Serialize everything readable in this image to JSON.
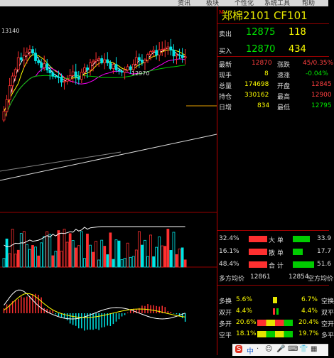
{
  "menu": {
    "items": [
      "资讯",
      "板块",
      "个性化",
      "系统工具",
      "帮助"
    ]
  },
  "chart": {
    "high_label": "13140",
    "mid_label": "12970",
    "colors": {
      "up": "#ff3030",
      "down": "#00e5e5",
      "ma1": "#ffffff",
      "ma2": "#ffff00",
      "ma3": "#ff00ff",
      "ma4": "#00cc00"
    }
  },
  "quote": {
    "badge": "M",
    "title": "郑棉2101  CF101",
    "sell_label": "卖出",
    "sell_price": "12875",
    "sell_vol": "118",
    "buy_label": "买入",
    "buy_price": "12870",
    "buy_vol": "434",
    "rows": [
      {
        "l1": "最新",
        "v1": "12870",
        "l2": "涨跌",
        "v2": "45/0.35%"
      },
      {
        "l1": "现手",
        "v1": "8",
        "l2": "速涨",
        "v2": "-0.04%"
      },
      {
        "l1": "总量",
        "v1": "174698",
        "l2": "开盘",
        "v2": "12845"
      },
      {
        "l1": "持仓",
        "v1": "330162",
        "l2": "最高",
        "v2": "12900"
      },
      {
        "l1": "日增",
        "v1": "834",
        "l2": "最低",
        "v2": "12795"
      }
    ]
  },
  "flow": {
    "big_buy_pct": "32.4%",
    "big_label": "大  单",
    "big_sell_pct": "33.9",
    "small_buy_pct": "16.1%",
    "small_label": "散  单",
    "small_sell_pct": "17.7",
    "total_buy_pct": "48.4%",
    "total_label": "合  计",
    "total_sell_pct": "51.6",
    "long_avg_label": "多方均价",
    "long_avg": "12861",
    "short_avg": "12854",
    "short_avg_label": "空方均价"
  },
  "positions": {
    "rows": [
      {
        "l": "多换",
        "v": "5.6%",
        "v2": "6.7%",
        "l2": "空换"
      },
      {
        "l": "双开",
        "v": "4.4%",
        "v2": "4.4%",
        "l2": "双平"
      },
      {
        "l": "多开",
        "v": "20.6%",
        "v2": "20.4%",
        "l2": "空开"
      },
      {
        "l": "空平",
        "v": "18.1%",
        "v2": "19.7%",
        "l2": "多平"
      }
    ]
  },
  "taskbar": {
    "items": [
      "S",
      "中",
      "·",
      "☺",
      "🎤",
      "⌨",
      "👕",
      "▦"
    ]
  }
}
